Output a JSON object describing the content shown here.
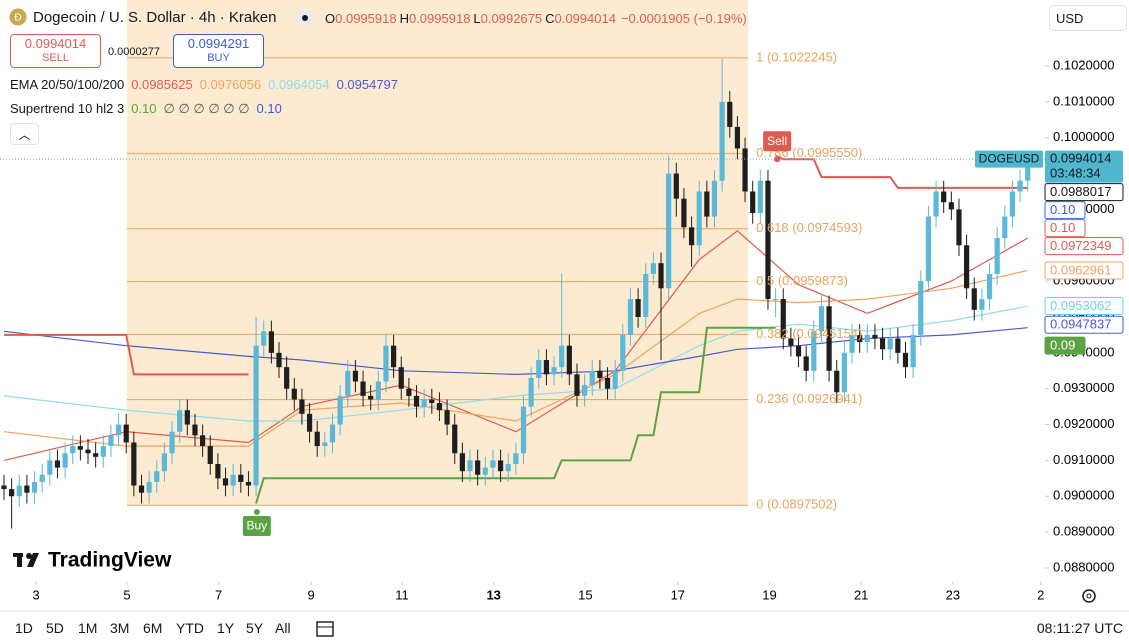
{
  "header": {
    "symbol_title": "Dogecoin / U. S. Dollar · 4h · Kraken",
    "ohlc": [
      {
        "key": "O",
        "value": "0.0995918"
      },
      {
        "key": "H",
        "value": "0.0995918"
      },
      {
        "key": "L",
        "value": "0.0992675"
      },
      {
        "key": "C",
        "value": "0.0994014"
      }
    ],
    "change": "−0.0001905 (−0.19%)",
    "currency": "USD"
  },
  "trade": {
    "sell_price": "0.0994014",
    "sell": "SELL",
    "spread": "0.0000277",
    "buy_price": "0.0994291",
    "buy": "BUY"
  },
  "indicators": [
    {
      "name": "EMA 20/50/100/200",
      "values": [
        {
          "text": "0.0985625",
          "color": "#e05a4f"
        },
        {
          "text": "0.0976056",
          "color": "#f0a35e"
        },
        {
          "text": "0.0964054",
          "color": "#8fdcea"
        },
        {
          "text": "0.0954797",
          "color": "#4a5bd1"
        }
      ]
    },
    {
      "name": "Supertrend 10 hl2 3",
      "values": [
        {
          "text": "0.10",
          "color": "#5aa243"
        },
        {
          "text": "∅ ∅ ∅ ∅ ∅ ∅",
          "color": "#555555"
        },
        {
          "text": "0.10",
          "color": "#3b5bdb"
        }
      ]
    }
  ],
  "logo": "TradingView",
  "toolbar": {
    "ranges": [
      "1D",
      "5D",
      "1M",
      "3M",
      "6M",
      "YTD",
      "1Y",
      "5Y",
      "All"
    ],
    "clock": "08:11:27 UTC"
  },
  "chart_data": {
    "type": "candlestick",
    "up_color": "#5cb8d8",
    "down_color": "#1e1e1e",
    "xlim": [
      -0.52,
      136.26
    ],
    "ylim": [
      0.087665,
      0.10384
    ],
    "xticks": [
      {
        "value": 4.2,
        "label": "3"
      },
      {
        "value": 16.1,
        "label": "5"
      },
      {
        "value": 28.1,
        "label": "7"
      },
      {
        "value": 40.2,
        "label": "9"
      },
      {
        "value": 52.1,
        "label": "11"
      },
      {
        "value": 64.1,
        "label": "13",
        "bold": true
      },
      {
        "value": 76.1,
        "label": "15"
      },
      {
        "value": 88.2,
        "label": "17"
      },
      {
        "value": 100.2,
        "label": "19"
      },
      {
        "value": 112.2,
        "label": "21"
      },
      {
        "value": 124.2,
        "label": "23"
      },
      {
        "value": 135.7,
        "label": "2"
      }
    ],
    "yticks": [
      {
        "value": 0.088,
        "label": "0.0880000"
      },
      {
        "value": 0.089,
        "label": "0.0890000"
      },
      {
        "value": 0.09,
        "label": "0.0900000"
      },
      {
        "value": 0.091,
        "label": "0.0910000"
      },
      {
        "value": 0.092,
        "label": "0.0920000"
      },
      {
        "value": 0.093,
        "label": "0.0930000"
      },
      {
        "value": 0.094,
        "label": "0.0940000"
      },
      {
        "value": 0.095,
        "label": "0.0950000"
      },
      {
        "value": 0.096,
        "label": "0.0960000"
      },
      {
        "value": 0.097,
        "label": "0.0970000"
      },
      {
        "value": 0.098,
        "label": "0.0980000"
      },
      {
        "value": 0.099,
        "label": "0.0990000"
      },
      {
        "value": 0.1,
        "label": "0.1000000"
      },
      {
        "value": 0.101,
        "label": "0.1010000"
      },
      {
        "value": 0.102,
        "label": "0.1020000"
      }
    ],
    "candles": [
      [
        0.0903,
        0.0906,
        0.0899,
        0.0902
      ],
      [
        0.0902,
        0.0905,
        0.0891,
        0.09
      ],
      [
        0.09,
        0.0906,
        0.0897,
        0.0903
      ],
      [
        0.0903,
        0.0906,
        0.0898,
        0.0901
      ],
      [
        0.0901,
        0.0907,
        0.0898,
        0.0904
      ],
      [
        0.0904,
        0.0909,
        0.0901,
        0.0906
      ],
      [
        0.0906,
        0.0913,
        0.0903,
        0.091
      ],
      [
        0.091,
        0.0913,
        0.0905,
        0.0908
      ],
      [
        0.0908,
        0.0915,
        0.0905,
        0.0912
      ],
      [
        0.0912,
        0.0917,
        0.0909,
        0.0914
      ],
      [
        0.0914,
        0.0917,
        0.091,
        0.0913
      ],
      [
        0.0913,
        0.0916,
        0.0909,
        0.0912
      ],
      [
        0.0912,
        0.0915,
        0.0908,
        0.0911
      ],
      [
        0.0911,
        0.0917,
        0.0908,
        0.0914
      ],
      [
        0.0914,
        0.092,
        0.0911,
        0.0917
      ],
      [
        0.0917,
        0.0923,
        0.0914,
        0.092
      ],
      [
        0.092,
        0.0923,
        0.0912,
        0.0915
      ],
      [
        0.0915,
        0.0918,
        0.09,
        0.0903
      ],
      [
        0.0903,
        0.0906,
        0.0898,
        0.0901
      ],
      [
        0.0901,
        0.0907,
        0.0898,
        0.0904
      ],
      [
        0.0904,
        0.091,
        0.0901,
        0.0907
      ],
      [
        0.0907,
        0.0915,
        0.0904,
        0.0912
      ],
      [
        0.0912,
        0.0921,
        0.0909,
        0.0918
      ],
      [
        0.0918,
        0.0927,
        0.0915,
        0.0924
      ],
      [
        0.0924,
        0.0927,
        0.0917,
        0.092
      ],
      [
        0.092,
        0.0923,
        0.0914,
        0.0917
      ],
      [
        0.0917,
        0.092,
        0.0911,
        0.0914
      ],
      [
        0.0914,
        0.0917,
        0.0906,
        0.0909
      ],
      [
        0.0909,
        0.0912,
        0.0902,
        0.0905
      ],
      [
        0.0905,
        0.0908,
        0.09,
        0.0903
      ],
      [
        0.0903,
        0.0909,
        0.09,
        0.0906
      ],
      [
        0.0906,
        0.0909,
        0.0901,
        0.0904
      ],
      [
        0.0904,
        0.0907,
        0.09,
        0.0903
      ],
      [
        0.0903,
        0.095,
        0.09,
        0.0942
      ],
      [
        0.0942,
        0.0949,
        0.0939,
        0.0946
      ],
      [
        0.0946,
        0.0949,
        0.0937,
        0.094
      ],
      [
        0.094,
        0.0943,
        0.0933,
        0.0936
      ],
      [
        0.0936,
        0.0939,
        0.0927,
        0.093
      ],
      [
        0.093,
        0.0933,
        0.0924,
        0.0927
      ],
      [
        0.0927,
        0.093,
        0.092,
        0.0923
      ],
      [
        0.0923,
        0.0926,
        0.0915,
        0.0918
      ],
      [
        0.0918,
        0.0921,
        0.0911,
        0.0914
      ],
      [
        0.0914,
        0.0918,
        0.0911,
        0.0915
      ],
      [
        0.0915,
        0.0923,
        0.0912,
        0.092
      ],
      [
        0.092,
        0.0931,
        0.0917,
        0.0928
      ],
      [
        0.0928,
        0.0938,
        0.0925,
        0.0935
      ],
      [
        0.0935,
        0.0938,
        0.0929,
        0.0932
      ],
      [
        0.0932,
        0.0935,
        0.0925,
        0.0928
      ],
      [
        0.0928,
        0.0931,
        0.0924,
        0.0927
      ],
      [
        0.0927,
        0.0935,
        0.0924,
        0.0932
      ],
      [
        0.0932,
        0.0945,
        0.0929,
        0.0942
      ],
      [
        0.0942,
        0.0945,
        0.0933,
        0.0936
      ],
      [
        0.0936,
        0.0939,
        0.0927,
        0.093
      ],
      [
        0.093,
        0.0933,
        0.0925,
        0.0928
      ],
      [
        0.0928,
        0.0931,
        0.0922,
        0.0925
      ],
      [
        0.0925,
        0.093,
        0.0922,
        0.0927
      ],
      [
        0.0927,
        0.093,
        0.0923,
        0.0926
      ],
      [
        0.0926,
        0.0929,
        0.0921,
        0.0924
      ],
      [
        0.0924,
        0.0927,
        0.0917,
        0.092
      ],
      [
        0.092,
        0.0923,
        0.0909,
        0.0912
      ],
      [
        0.0912,
        0.0915,
        0.0904,
        0.0907
      ],
      [
        0.0907,
        0.0913,
        0.0904,
        0.091
      ],
      [
        0.091,
        0.0913,
        0.0903,
        0.0906
      ],
      [
        0.0906,
        0.0911,
        0.0903,
        0.0908
      ],
      [
        0.0908,
        0.0913,
        0.0905,
        0.091
      ],
      [
        0.091,
        0.0913,
        0.0904,
        0.0907
      ],
      [
        0.0907,
        0.0912,
        0.0904,
        0.0909
      ],
      [
        0.0909,
        0.0915,
        0.0906,
        0.0912
      ],
      [
        0.0912,
        0.0928,
        0.0909,
        0.0925
      ],
      [
        0.0925,
        0.0936,
        0.0922,
        0.0933
      ],
      [
        0.0933,
        0.0941,
        0.093,
        0.0938
      ],
      [
        0.0938,
        0.0941,
        0.0931,
        0.0934
      ],
      [
        0.0934,
        0.0939,
        0.0931,
        0.0936
      ],
      [
        0.0936,
        0.0962,
        0.0933,
        0.0942
      ],
      [
        0.0942,
        0.0945,
        0.0931,
        0.0934
      ],
      [
        0.0934,
        0.0937,
        0.0925,
        0.0928
      ],
      [
        0.0928,
        0.0934,
        0.0925,
        0.0931
      ],
      [
        0.0931,
        0.0938,
        0.0928,
        0.0935
      ],
      [
        0.0935,
        0.0938,
        0.093,
        0.0933
      ],
      [
        0.0933,
        0.0936,
        0.0927,
        0.093
      ],
      [
        0.093,
        0.0938,
        0.0927,
        0.0935
      ],
      [
        0.0935,
        0.0948,
        0.0932,
        0.0945
      ],
      [
        0.0945,
        0.0958,
        0.0942,
        0.0955
      ],
      [
        0.0955,
        0.0958,
        0.0947,
        0.095
      ],
      [
        0.095,
        0.0965,
        0.0947,
        0.0962
      ],
      [
        0.0962,
        0.0968,
        0.0959,
        0.0965
      ],
      [
        0.0965,
        0.0968,
        0.0938,
        0.0958
      ],
      [
        0.0958,
        0.0995,
        0.0955,
        0.099
      ],
      [
        0.099,
        0.0993,
        0.0978,
        0.0983
      ],
      [
        0.0983,
        0.0986,
        0.0972,
        0.0975
      ],
      [
        0.0975,
        0.0978,
        0.0964,
        0.097
      ],
      [
        0.097,
        0.0988,
        0.0967,
        0.0985
      ],
      [
        0.0985,
        0.0988,
        0.0975,
        0.0978
      ],
      [
        0.0978,
        0.0991,
        0.0975,
        0.0988
      ],
      [
        0.0988,
        0.1022,
        0.0985,
        0.101
      ],
      [
        0.101,
        0.1013,
        0.1,
        0.1003
      ],
      [
        0.1003,
        0.1006,
        0.0994,
        0.0997
      ],
      [
        0.0997,
        0.1,
        0.0982,
        0.0985
      ],
      [
        0.0985,
        0.0988,
        0.0976,
        0.0979
      ],
      [
        0.0979,
        0.0991,
        0.0976,
        0.0988
      ],
      [
        0.0988,
        0.0991,
        0.0952,
        0.0955
      ],
      [
        0.0955,
        0.0958,
        0.095,
        0.0955
      ],
      [
        0.0955,
        0.0958,
        0.0941,
        0.0944
      ],
      [
        0.0944,
        0.0947,
        0.0939,
        0.0942
      ],
      [
        0.0942,
        0.0945,
        0.0936,
        0.0939
      ],
      [
        0.0939,
        0.0942,
        0.0932,
        0.0935
      ],
      [
        0.0935,
        0.0949,
        0.0932,
        0.0946
      ],
      [
        0.0946,
        0.0956,
        0.0943,
        0.0953
      ],
      [
        0.0953,
        0.0956,
        0.0932,
        0.0935
      ],
      [
        0.0935,
        0.0938,
        0.0926,
        0.0929
      ],
      [
        0.0929,
        0.0943,
        0.0926,
        0.094
      ],
      [
        0.094,
        0.0948,
        0.0937,
        0.0945
      ],
      [
        0.0945,
        0.0948,
        0.094,
        0.0943
      ],
      [
        0.0943,
        0.0948,
        0.094,
        0.0945
      ],
      [
        0.0945,
        0.0948,
        0.0941,
        0.0944
      ],
      [
        0.0944,
        0.0947,
        0.0938,
        0.0941
      ],
      [
        0.0941,
        0.0947,
        0.0938,
        0.0944
      ],
      [
        0.0944,
        0.0947,
        0.0937,
        0.094
      ],
      [
        0.094,
        0.0943,
        0.0933,
        0.0936
      ],
      [
        0.0936,
        0.0948,
        0.0933,
        0.0945
      ],
      [
        0.0945,
        0.0963,
        0.0942,
        0.096
      ],
      [
        0.096,
        0.0981,
        0.0957,
        0.0978
      ],
      [
        0.0978,
        0.0988,
        0.0975,
        0.0985
      ],
      [
        0.0985,
        0.0988,
        0.0979,
        0.0982
      ],
      [
        0.0982,
        0.0985,
        0.0977,
        0.098
      ],
      [
        0.098,
        0.0983,
        0.0967,
        0.097
      ],
      [
        0.097,
        0.0973,
        0.0955,
        0.0958
      ],
      [
        0.0958,
        0.0961,
        0.0949,
        0.0952
      ],
      [
        0.0952,
        0.0958,
        0.0949,
        0.0955
      ],
      [
        0.0955,
        0.0965,
        0.0952,
        0.0962
      ],
      [
        0.0962,
        0.0975,
        0.0959,
        0.0972
      ],
      [
        0.0972,
        0.0981,
        0.0969,
        0.0978
      ],
      [
        0.0978,
        0.0988,
        0.0975,
        0.0985
      ],
      [
        0.0985,
        0.0991,
        0.0982,
        0.0988
      ],
      [
        0.0988,
        0.0996,
        0.0985,
        0.0994
      ]
    ],
    "emas": [
      {
        "color": "#e05a4f",
        "x": [
          0,
          16,
          32,
          39,
          52,
          67,
          80,
          91,
          96,
          104,
          113,
          124,
          134
        ],
        "values": [
          0.091,
          0.0918,
          0.0915,
          0.0925,
          0.0931,
          0.0918,
          0.0935,
          0.0966,
          0.0974,
          0.0959,
          0.0951,
          0.096,
          0.0972
        ]
      },
      {
        "color": "#f0a35e",
        "x": [
          0,
          16,
          32,
          39,
          52,
          67,
          80,
          91,
          96,
          104,
          113,
          124,
          134
        ],
        "values": [
          0.0918,
          0.0914,
          0.0914,
          0.0924,
          0.0926,
          0.0921,
          0.0934,
          0.0951,
          0.0955,
          0.0954,
          0.0955,
          0.0958,
          0.0963
        ]
      },
      {
        "color": "#8fdcea",
        "x": [
          0,
          16,
          32,
          39,
          52,
          67,
          80,
          91,
          96,
          104,
          113,
          124,
          134
        ],
        "values": [
          0.0928,
          0.0924,
          0.0921,
          0.0921,
          0.0924,
          0.0928,
          0.093,
          0.0942,
          0.0946,
          0.0948,
          0.0946,
          0.0949,
          0.0953
        ]
      },
      {
        "color": "#4a5bd1",
        "x": [
          0,
          16,
          32,
          39,
          52,
          67,
          80,
          91,
          96,
          104,
          113,
          124,
          134
        ],
        "values": [
          0.0946,
          0.0942,
          0.0939,
          0.0938,
          0.0935,
          0.0934,
          0.0935,
          0.0939,
          0.0941,
          0.0942,
          0.0944,
          0.0945,
          0.0947
        ]
      }
    ],
    "supertrend": [
      {
        "color": "#e05a4f",
        "x": [
          0,
          16,
          17,
          32
        ],
        "values": [
          0.0945,
          0.0945,
          0.0934,
          0.0934
        ]
      },
      {
        "color": "#5aa243",
        "x": [
          33,
          34,
          72,
          73,
          82,
          83,
          85,
          86,
          91,
          92,
          101
        ],
        "values": [
          0.0898,
          0.0905,
          0.0905,
          0.091,
          0.091,
          0.0917,
          0.0917,
          0.0929,
          0.0929,
          0.0947,
          0.0947
        ]
      },
      {
        "color": "#e05a4f",
        "x": [
          101,
          102,
          106,
          107,
          116,
          117,
          134
        ],
        "values": [
          0.0995,
          0.0994,
          0.0994,
          0.0989,
          0.0989,
          0.0986,
          0.0986
        ]
      }
    ],
    "signals": [
      {
        "label": "Sell",
        "x": 101.2,
        "value": 0.0994,
        "color": "#e05a4f",
        "side": "above"
      },
      {
        "label": "Buy",
        "x": 33.1,
        "value": 0.08956,
        "color": "#5aa243",
        "side": "below"
      }
    ],
    "fib": {
      "x": [
        16.1,
        97.4
      ],
      "color": "#e8a35a",
      "levels": [
        {
          "label": "1 (0.1022245)",
          "value": 0.1022245
        },
        {
          "label": "0.786 (0.0995550)",
          "value": 0.099555
        },
        {
          "label": "0.618 (0.0974593)",
          "value": 0.0974593
        },
        {
          "label": "0.5 (0.0959873)",
          "value": 0.0959873
        },
        {
          "label": "0.382 (0.0945154)",
          "value": 0.0945154
        },
        {
          "label": "0.236 (0.0926941)",
          "value": 0.0926941
        },
        {
          "label": "0 (0.0897502)",
          "value": 0.0897502
        }
      ]
    },
    "last_price": {
      "name": "DOGEUSD",
      "value": 0.0994014,
      "countdown": "03:48:34",
      "color": "#4fb8cf"
    },
    "badges": [
      {
        "value": 0.0988017,
        "color": "#131722",
        "filled": false
      },
      {
        "value": 0.099,
        "label": "0.10",
        "color": "#3b5bdb",
        "filled": false
      },
      {
        "value": 0.0986,
        "label": "0.10",
        "color": "#e05a4f",
        "filled": false
      },
      {
        "value": 0.0972349,
        "color": "#e05a4f",
        "filled": false
      },
      {
        "value": 0.0962961,
        "color": "#f0a35e",
        "filled": false
      },
      {
        "value": 0.0953062,
        "color": "#6fd0e2",
        "filled": false
      },
      {
        "value": 0.0947837,
        "color": "#4a5bd1",
        "filled": false
      },
      {
        "value": 0.0942,
        "label": "0.09",
        "color": "#5aa243",
        "filled": true
      }
    ]
  }
}
